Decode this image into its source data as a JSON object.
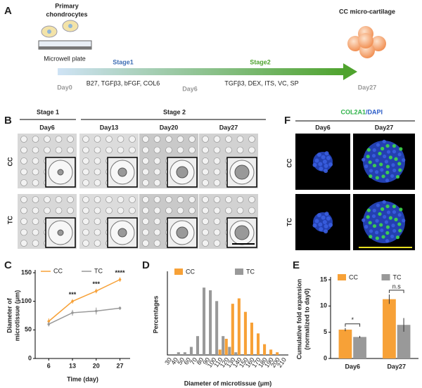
{
  "figure": {
    "panel_a": {
      "label": "A",
      "cells_title": [
        "Primary",
        "chondrocytes"
      ],
      "plate": "Microwell plate",
      "stage1": "Stage1",
      "stage2": "Stage2",
      "product": "CC micro-cartilage",
      "day0": "Day0",
      "day6": "Day6",
      "day27": "Day27",
      "medium1": "B27, TGFβ3, bFGF, COL6",
      "medium2": "TGFβ3, DEX, ITS, VC, SP"
    },
    "panel_b": {
      "label": "B",
      "stage1": "Stage 1",
      "stage2": "Stage 2",
      "days": [
        "Day6",
        "Day13",
        "Day20",
        "Day27"
      ],
      "rows": [
        "CC",
        "TC"
      ]
    },
    "panel_f": {
      "label": "F",
      "stain_green": "COL2A1",
      "stain_blue": "/DAPI",
      "days": [
        "Day6",
        "Day27"
      ],
      "rows": [
        "CC",
        "TC"
      ]
    }
  },
  "chart_data": [
    {
      "type": "line",
      "label": "C",
      "x": [
        6,
        13,
        20,
        27
      ],
      "xlim": [
        2,
        30
      ],
      "xticks": [
        6,
        13,
        20,
        27
      ],
      "ylim": [
        0,
        150
      ],
      "yticks": [
        0,
        50,
        100,
        150
      ],
      "xlabel": "Time (day)",
      "ylabel": [
        "Diameter of",
        "microtissue (μm)"
      ],
      "legend": "top",
      "series": [
        {
          "name": "CC",
          "color": "#f7a137",
          "values": [
            65,
            100,
            118,
            138
          ],
          "errors": [
            5,
            4,
            4,
            4
          ]
        },
        {
          "name": "TC",
          "color": "#999999",
          "values": [
            60,
            80,
            83,
            88
          ],
          "errors": [
            4,
            5,
            6,
            3
          ]
        }
      ],
      "annotations": [
        {
          "x": 13,
          "text": "***"
        },
        {
          "x": 20,
          "text": "***"
        },
        {
          "x": 27,
          "text": "****"
        }
      ]
    },
    {
      "type": "bar",
      "label": "D",
      "categories": [
        "30",
        "40",
        "50",
        "60",
        "70",
        "80",
        "90",
        "100",
        "110",
        "120",
        "130",
        "140",
        "150",
        "160",
        "170",
        "180",
        "190",
        "200",
        "210"
      ],
      "ylim": [
        0,
        30
      ],
      "xlabel": "Diameter of microtissue (μm)",
      "ylabel": [
        "Percentages"
      ],
      "legend": "top",
      "series": [
        {
          "name": "CC",
          "color": "#f7a137",
          "values": [
            0,
            0,
            0,
            0,
            0,
            0,
            0,
            0,
            2,
            6,
            19,
            21,
            16,
            12,
            8,
            4,
            2,
            1,
            0
          ]
        },
        {
          "name": "TC",
          "color": "#999999",
          "values": [
            0,
            1,
            1,
            3,
            7,
            25,
            24,
            20,
            7,
            3,
            1,
            0,
            0,
            0,
            0,
            0,
            0,
            0,
            0
          ]
        }
      ]
    },
    {
      "type": "bar",
      "label": "E",
      "categories": [
        "Day6",
        "Day27"
      ],
      "ylim": [
        0,
        15
      ],
      "yticks": [
        0,
        5,
        10,
        15
      ],
      "ylabel": [
        "Cumulative fold expansion",
        "(normalized to day0)"
      ],
      "legend": "top",
      "series": [
        {
          "name": "CC",
          "color": "#f7a137",
          "values": [
            5.5,
            11.3
          ],
          "errors": [
            0.3,
            0.9
          ]
        },
        {
          "name": "TC",
          "color": "#999999",
          "values": [
            4.1,
            6.4
          ],
          "errors": [
            0.2,
            1.3
          ]
        }
      ],
      "annotations": [
        {
          "category": "Day6",
          "text": "*"
        },
        {
          "category": "Day27",
          "text": "n.s"
        }
      ]
    }
  ]
}
